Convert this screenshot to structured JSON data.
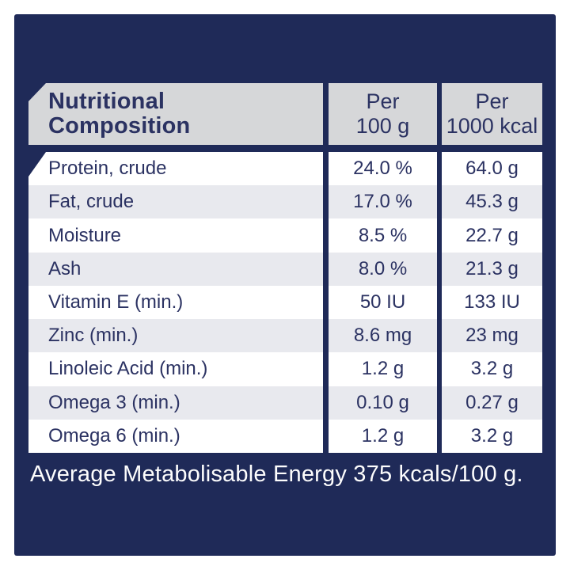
{
  "chart_data": {
    "type": "table",
    "title": "Nutritional Composition",
    "columns": [
      "Nutritional Composition",
      "Per 100 g",
      "Per 1000 kcal"
    ],
    "rows": [
      [
        "Protein, crude",
        "24.0 %",
        "64.0 g"
      ],
      [
        "Fat, crude",
        "17.0 %",
        "45.3 g"
      ],
      [
        "Moisture",
        "8.5 %",
        "22.7 g"
      ],
      [
        "Ash",
        "8.0 %",
        "21.3 g"
      ],
      [
        "Vitamin E (min.)",
        "50 IU",
        "133 IU"
      ],
      [
        "Zinc (min.)",
        "8.6 mg",
        "23 mg"
      ],
      [
        "Linoleic Acid (min.)",
        "1.2 g",
        "3.2 g"
      ],
      [
        "Omega 3 (min.)",
        "0.10 g",
        "0.27 g"
      ],
      [
        "Omega 6 (min.)",
        "1.2 g",
        "3.2 g"
      ]
    ],
    "footer": "Average Metabolisable Energy 375 kcals/100 g."
  },
  "header": {
    "title_line1": "Nutritional",
    "title_line2": "Composition",
    "col2_line1": "Per",
    "col2_line2": "100 g",
    "col3_line1": "Per",
    "col3_line2": "1000 kcal"
  },
  "footer": {
    "text": "Average Metabolisable Energy 375 kcals/100 g."
  },
  "colors": {
    "panel_navy": "#1f2a58",
    "header_gray": "#d6d7d9",
    "row_white": "#ffffff",
    "row_alt": "#e8e9ee",
    "text_navy": "#2b3262",
    "footer_text": "#ffffff"
  }
}
